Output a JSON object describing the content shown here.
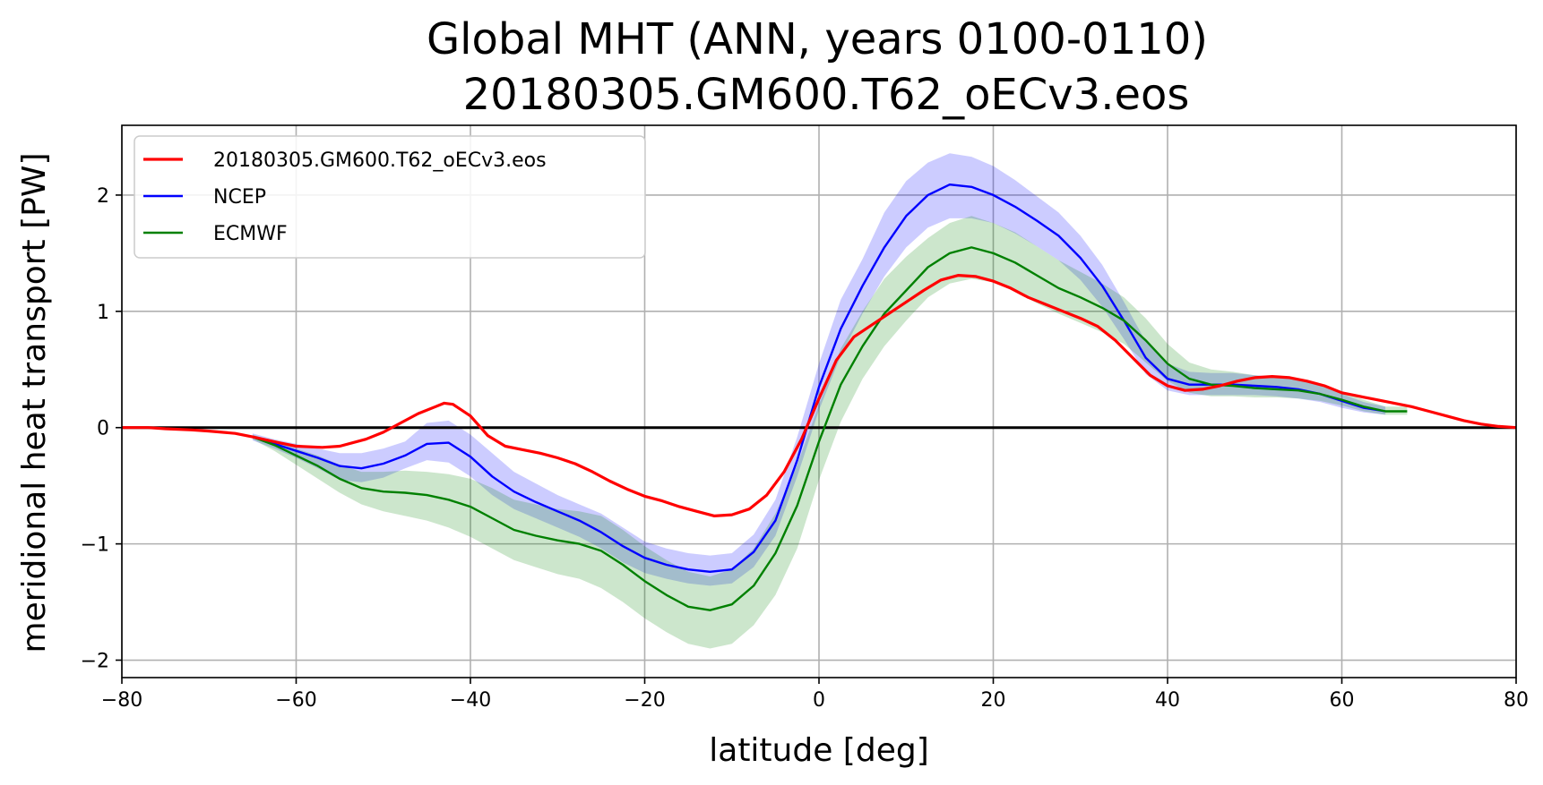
{
  "chart_data": {
    "type": "line",
    "title_line1": "Global MHT (ANN, years 0100-0110)",
    "title_line2": "20180305.GM600.T62_oECv3.eos",
    "xlabel": "latitude [deg]",
    "ylabel": "meridional heat transport [PW]",
    "xlim": [
      -80,
      80
    ],
    "ylim": [
      -2.15,
      2.6
    ],
    "xticks": [
      -80,
      -60,
      -40,
      -20,
      0,
      20,
      40,
      60,
      80
    ],
    "xtick_labels": [
      "−80",
      "−60",
      "−40",
      "−20",
      "0",
      "20",
      "40",
      "60",
      "80"
    ],
    "yticks": [
      -2,
      -1,
      0,
      1,
      2
    ],
    "ytick_labels": [
      "−2",
      "−1",
      "0",
      "1",
      "2"
    ],
    "grid": true,
    "legend_position": "top-left",
    "zero_line": true,
    "series": [
      {
        "name": "20180305.GM600.T62_oECv3.eos",
        "color": "#ff0000",
        "x": [
          -80,
          -77,
          -75,
          -72,
          -70,
          -67,
          -65,
          -62,
          -60,
          -57,
          -55,
          -52,
          -50,
          -48,
          -46,
          -44,
          -43,
          -42,
          -40,
          -38,
          -36,
          -34,
          -32,
          -30,
          -28,
          -26,
          -24,
          -22,
          -20,
          -18,
          -16,
          -14,
          -12,
          -10,
          -8,
          -6,
          -4,
          -2,
          0,
          2,
          4,
          6,
          8,
          10,
          12,
          14,
          16,
          18,
          20,
          22,
          24,
          26,
          28,
          30,
          32,
          34,
          36,
          38,
          40,
          42,
          44,
          46,
          48,
          50,
          52,
          54,
          56,
          58,
          60,
          62,
          64,
          66,
          68,
          70,
          72,
          74,
          76,
          78,
          80
        ],
        "y": [
          0.0,
          0.0,
          -0.01,
          -0.02,
          -0.03,
          -0.05,
          -0.08,
          -0.13,
          -0.16,
          -0.17,
          -0.16,
          -0.1,
          -0.04,
          0.04,
          0.12,
          0.18,
          0.21,
          0.2,
          0.1,
          -0.07,
          -0.16,
          -0.19,
          -0.22,
          -0.26,
          -0.31,
          -0.38,
          -0.46,
          -0.53,
          -0.59,
          -0.63,
          -0.68,
          -0.72,
          -0.76,
          -0.75,
          -0.7,
          -0.58,
          -0.38,
          -0.1,
          0.25,
          0.58,
          0.78,
          0.88,
          0.98,
          1.08,
          1.18,
          1.27,
          1.31,
          1.3,
          1.26,
          1.2,
          1.12,
          1.06,
          1.0,
          0.94,
          0.87,
          0.75,
          0.6,
          0.45,
          0.36,
          0.32,
          0.33,
          0.36,
          0.4,
          0.43,
          0.44,
          0.43,
          0.4,
          0.36,
          0.3,
          0.27,
          0.24,
          0.21,
          0.18,
          0.14,
          0.1,
          0.06,
          0.03,
          0.01,
          0.0
        ]
      },
      {
        "name": "NCEP",
        "color": "#0000ff",
        "x": [
          -65,
          -62.5,
          -60,
          -57.5,
          -55,
          -52.5,
          -50,
          -47.5,
          -45,
          -42.5,
          -40,
          -37.5,
          -35,
          -32.5,
          -30,
          -27.5,
          -25,
          -22.5,
          -20,
          -17.5,
          -15,
          -12.5,
          -10,
          -7.5,
          -5,
          -2.5,
          0,
          2.5,
          5,
          7.5,
          10,
          12.5,
          15,
          17.5,
          20,
          22.5,
          25,
          27.5,
          30,
          32.5,
          35,
          37.5,
          40,
          42.5,
          45,
          47.5,
          50,
          52.5,
          55,
          57.5,
          60,
          62.5,
          65
        ],
        "y": [
          -0.08,
          -0.14,
          -0.2,
          -0.26,
          -0.33,
          -0.35,
          -0.31,
          -0.24,
          -0.14,
          -0.13,
          -0.25,
          -0.42,
          -0.55,
          -0.64,
          -0.72,
          -0.8,
          -0.9,
          -1.02,
          -1.12,
          -1.18,
          -1.22,
          -1.24,
          -1.22,
          -1.07,
          -0.8,
          -0.28,
          0.35,
          0.85,
          1.22,
          1.55,
          1.82,
          2.0,
          2.09,
          2.07,
          2.0,
          1.9,
          1.78,
          1.65,
          1.46,
          1.22,
          0.92,
          0.6,
          0.42,
          0.37,
          0.37,
          0.37,
          0.36,
          0.35,
          0.33,
          0.29,
          0.23,
          0.17,
          0.14
        ],
        "band_low": [
          -0.11,
          -0.18,
          -0.26,
          -0.35,
          -0.45,
          -0.47,
          -0.43,
          -0.35,
          -0.28,
          -0.3,
          -0.42,
          -0.58,
          -0.7,
          -0.78,
          -0.86,
          -0.94,
          -1.04,
          -1.16,
          -1.25,
          -1.3,
          -1.34,
          -1.36,
          -1.34,
          -1.2,
          -0.93,
          -0.42,
          0.15,
          0.62,
          0.98,
          1.3,
          1.55,
          1.72,
          1.8,
          1.8,
          1.76,
          1.67,
          1.56,
          1.44,
          1.27,
          1.04,
          0.76,
          0.46,
          0.32,
          0.28,
          0.28,
          0.28,
          0.28,
          0.27,
          0.25,
          0.22,
          0.17,
          0.13,
          0.11
        ],
        "band_high": [
          -0.05,
          -0.1,
          -0.14,
          -0.18,
          -0.22,
          -0.22,
          -0.18,
          -0.12,
          0.04,
          0.06,
          -0.06,
          -0.22,
          -0.38,
          -0.48,
          -0.58,
          -0.66,
          -0.74,
          -0.86,
          -0.98,
          -1.04,
          -1.08,
          -1.1,
          -1.08,
          -0.92,
          -0.62,
          -0.08,
          0.55,
          1.1,
          1.45,
          1.85,
          2.12,
          2.28,
          2.36,
          2.33,
          2.25,
          2.13,
          1.99,
          1.85,
          1.65,
          1.4,
          1.08,
          0.74,
          0.55,
          0.48,
          0.47,
          0.47,
          0.45,
          0.44,
          0.41,
          0.36,
          0.29,
          0.22,
          0.18
        ]
      },
      {
        "name": "ECMWF",
        "color": "#008000",
        "x": [
          -65,
          -62.5,
          -60,
          -57.5,
          -55,
          -52.5,
          -50,
          -47.5,
          -45,
          -42.5,
          -40,
          -37.5,
          -35,
          -32.5,
          -30,
          -27.5,
          -25,
          -22.5,
          -20,
          -17.5,
          -15,
          -12.5,
          -10,
          -7.5,
          -5,
          -2.5,
          0,
          2.5,
          5,
          7.5,
          10,
          12.5,
          15,
          17.5,
          20,
          22.5,
          25,
          27.5,
          30,
          32.5,
          35,
          37.5,
          40,
          42.5,
          45,
          47.5,
          50,
          52.5,
          55,
          57.5,
          60,
          62.5,
          65,
          67.5
        ],
        "y": [
          -0.08,
          -0.15,
          -0.24,
          -0.33,
          -0.44,
          -0.52,
          -0.55,
          -0.56,
          -0.58,
          -0.62,
          -0.68,
          -0.78,
          -0.88,
          -0.93,
          -0.97,
          -1.0,
          -1.06,
          -1.18,
          -1.32,
          -1.44,
          -1.54,
          -1.57,
          -1.52,
          -1.36,
          -1.08,
          -0.67,
          -0.12,
          0.37,
          0.7,
          0.98,
          1.18,
          1.38,
          1.5,
          1.55,
          1.5,
          1.42,
          1.31,
          1.2,
          1.12,
          1.03,
          0.92,
          0.75,
          0.55,
          0.42,
          0.37,
          0.36,
          0.34,
          0.33,
          0.32,
          0.29,
          0.24,
          0.18,
          0.14,
          0.14
        ],
        "band_low": [
          -0.1,
          -0.2,
          -0.32,
          -0.44,
          -0.56,
          -0.66,
          -0.72,
          -0.76,
          -0.8,
          -0.86,
          -0.94,
          -1.04,
          -1.14,
          -1.2,
          -1.26,
          -1.3,
          -1.38,
          -1.5,
          -1.64,
          -1.76,
          -1.86,
          -1.9,
          -1.86,
          -1.7,
          -1.44,
          -1.04,
          -0.45,
          0.05,
          0.42,
          0.7,
          0.92,
          1.12,
          1.24,
          1.28,
          1.25,
          1.17,
          1.07,
          0.98,
          0.9,
          0.82,
          0.72,
          0.56,
          0.4,
          0.3,
          0.27,
          0.27,
          0.26,
          0.26,
          0.25,
          0.23,
          0.19,
          0.14,
          0.11,
          0.11
        ],
        "band_high": [
          -0.06,
          -0.12,
          -0.18,
          -0.24,
          -0.32,
          -0.38,
          -0.38,
          -0.37,
          -0.38,
          -0.4,
          -0.44,
          -0.52,
          -0.62,
          -0.66,
          -0.7,
          -0.72,
          -0.76,
          -0.88,
          -1.02,
          -1.14,
          -1.24,
          -1.28,
          -1.22,
          -1.04,
          -0.74,
          -0.32,
          0.2,
          0.68,
          1.0,
          1.28,
          1.47,
          1.63,
          1.76,
          1.82,
          1.76,
          1.68,
          1.56,
          1.44,
          1.34,
          1.24,
          1.12,
          0.94,
          0.72,
          0.56,
          0.5,
          0.48,
          0.45,
          0.43,
          0.41,
          0.37,
          0.31,
          0.24,
          0.18,
          0.18
        ]
      }
    ],
    "band_colors": {
      "NCEP": "#0000ff",
      "ECMWF": "#008000"
    },
    "band_opacity": {
      "NCEP": 0.2,
      "ECMWF": 0.2
    },
    "zero_line_color": "#000000"
  }
}
